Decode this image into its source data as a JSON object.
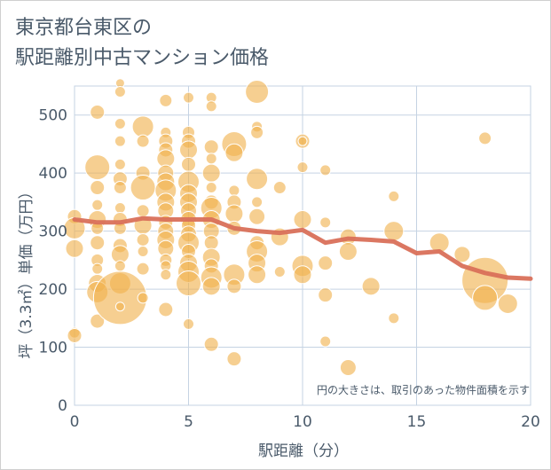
{
  "chart_data": {
    "type": "scatter",
    "title_lines": [
      "東京都台東区の",
      "駅距離別中古マンション価格"
    ],
    "xlabel": "駅距離（分）",
    "ylabel": "坪（3.3㎡）単価（万円）",
    "xlim": [
      0,
      20
    ],
    "ylim": [
      0,
      550
    ],
    "xticks": [
      0,
      5,
      10,
      15,
      20
    ],
    "yticks": [
      0,
      100,
      200,
      300,
      400,
      500
    ],
    "grid": true,
    "annotation": "円の大きさは、取引のあった物件面積を示す",
    "colors": {
      "bubble": "#f0b14d",
      "trend": "#d9705a",
      "grid": "#c5d3e3"
    },
    "bubbles": [
      {
        "x": 0,
        "y": 325,
        "s": 8
      },
      {
        "x": 0,
        "y": 305,
        "s": 12
      },
      {
        "x": 0,
        "y": 270,
        "s": 10
      },
      {
        "x": 0,
        "y": 125,
        "s": 6
      },
      {
        "x": 0,
        "y": 120,
        "s": 8
      },
      {
        "x": 1,
        "y": 505,
        "s": 8
      },
      {
        "x": 1,
        "y": 410,
        "s": 14
      },
      {
        "x": 1,
        "y": 375,
        "s": 8
      },
      {
        "x": 1,
        "y": 345,
        "s": 6
      },
      {
        "x": 1,
        "y": 320,
        "s": 10
      },
      {
        "x": 1,
        "y": 305,
        "s": 7
      },
      {
        "x": 1,
        "y": 280,
        "s": 8
      },
      {
        "x": 1,
        "y": 250,
        "s": 7
      },
      {
        "x": 1,
        "y": 235,
        "s": 6
      },
      {
        "x": 1,
        "y": 210,
        "s": 10
      },
      {
        "x": 1,
        "y": 195,
        "s": 12
      },
      {
        "x": 1,
        "y": 145,
        "s": 8
      },
      {
        "x": 2,
        "y": 555,
        "s": 5
      },
      {
        "x": 2,
        "y": 540,
        "s": 6
      },
      {
        "x": 2,
        "y": 485,
        "s": 6
      },
      {
        "x": 2,
        "y": 455,
        "s": 6
      },
      {
        "x": 2,
        "y": 415,
        "s": 6
      },
      {
        "x": 2,
        "y": 390,
        "s": 8
      },
      {
        "x": 2,
        "y": 375,
        "s": 7
      },
      {
        "x": 2,
        "y": 340,
        "s": 6
      },
      {
        "x": 2,
        "y": 320,
        "s": 8
      },
      {
        "x": 2,
        "y": 305,
        "s": 7
      },
      {
        "x": 2,
        "y": 275,
        "s": 8
      },
      {
        "x": 2,
        "y": 260,
        "s": 10
      },
      {
        "x": 2,
        "y": 240,
        "s": 6
      },
      {
        "x": 2,
        "y": 210,
        "s": 12
      },
      {
        "x": 2,
        "y": 185,
        "s": 30
      },
      {
        "x": 2,
        "y": 170,
        "s": 5
      },
      {
        "x": 3,
        "y": 480,
        "s": 12
      },
      {
        "x": 3,
        "y": 455,
        "s": 7
      },
      {
        "x": 3,
        "y": 400,
        "s": 8
      },
      {
        "x": 3,
        "y": 375,
        "s": 14
      },
      {
        "x": 3,
        "y": 335,
        "s": 7
      },
      {
        "x": 3,
        "y": 310,
        "s": 10
      },
      {
        "x": 3,
        "y": 285,
        "s": 7
      },
      {
        "x": 3,
        "y": 265,
        "s": 6
      },
      {
        "x": 3,
        "y": 235,
        "s": 7
      },
      {
        "x": 3,
        "y": 185,
        "s": 6
      },
      {
        "x": 4,
        "y": 525,
        "s": 7
      },
      {
        "x": 4,
        "y": 470,
        "s": 6
      },
      {
        "x": 4,
        "y": 455,
        "s": 8
      },
      {
        "x": 4,
        "y": 440,
        "s": 8
      },
      {
        "x": 4,
        "y": 425,
        "s": 10
      },
      {
        "x": 4,
        "y": 400,
        "s": 9
      },
      {
        "x": 4,
        "y": 385,
        "s": 10
      },
      {
        "x": 4,
        "y": 370,
        "s": 12
      },
      {
        "x": 4,
        "y": 350,
        "s": 10
      },
      {
        "x": 4,
        "y": 335,
        "s": 9
      },
      {
        "x": 4,
        "y": 315,
        "s": 8
      },
      {
        "x": 4,
        "y": 300,
        "s": 9
      },
      {
        "x": 4,
        "y": 285,
        "s": 10
      },
      {
        "x": 4,
        "y": 270,
        "s": 9
      },
      {
        "x": 4,
        "y": 250,
        "s": 7
      },
      {
        "x": 4,
        "y": 240,
        "s": 6
      },
      {
        "x": 4,
        "y": 225,
        "s": 6
      },
      {
        "x": 4,
        "y": 165,
        "s": 8
      },
      {
        "x": 5,
        "y": 530,
        "s": 6
      },
      {
        "x": 5,
        "y": 470,
        "s": 7
      },
      {
        "x": 5,
        "y": 455,
        "s": 8
      },
      {
        "x": 5,
        "y": 440,
        "s": 10
      },
      {
        "x": 5,
        "y": 415,
        "s": 8
      },
      {
        "x": 5,
        "y": 385,
        "s": 12
      },
      {
        "x": 5,
        "y": 365,
        "s": 10
      },
      {
        "x": 5,
        "y": 350,
        "s": 10
      },
      {
        "x": 5,
        "y": 335,
        "s": 9
      },
      {
        "x": 5,
        "y": 320,
        "s": 9
      },
      {
        "x": 5,
        "y": 310,
        "s": 8
      },
      {
        "x": 5,
        "y": 295,
        "s": 9
      },
      {
        "x": 5,
        "y": 280,
        "s": 12
      },
      {
        "x": 5,
        "y": 265,
        "s": 8
      },
      {
        "x": 5,
        "y": 245,
        "s": 10
      },
      {
        "x": 5,
        "y": 230,
        "s": 12
      },
      {
        "x": 5,
        "y": 210,
        "s": 14
      },
      {
        "x": 5,
        "y": 140,
        "s": 6
      },
      {
        "x": 6,
        "y": 530,
        "s": 6
      },
      {
        "x": 6,
        "y": 515,
        "s": 6
      },
      {
        "x": 6,
        "y": 445,
        "s": 8
      },
      {
        "x": 6,
        "y": 425,
        "s": 6
      },
      {
        "x": 6,
        "y": 400,
        "s": 10
      },
      {
        "x": 6,
        "y": 375,
        "s": 6
      },
      {
        "x": 6,
        "y": 350,
        "s": 8
      },
      {
        "x": 6,
        "y": 340,
        "s": 12
      },
      {
        "x": 6,
        "y": 320,
        "s": 10
      },
      {
        "x": 6,
        "y": 300,
        "s": 9
      },
      {
        "x": 6,
        "y": 280,
        "s": 8
      },
      {
        "x": 6,
        "y": 255,
        "s": 10
      },
      {
        "x": 6,
        "y": 240,
        "s": 8
      },
      {
        "x": 6,
        "y": 220,
        "s": 12
      },
      {
        "x": 6,
        "y": 205,
        "s": 10
      },
      {
        "x": 6,
        "y": 105,
        "s": 8
      },
      {
        "x": 7,
        "y": 450,
        "s": 14
      },
      {
        "x": 7,
        "y": 435,
        "s": 10
      },
      {
        "x": 7,
        "y": 370,
        "s": 6
      },
      {
        "x": 7,
        "y": 350,
        "s": 8
      },
      {
        "x": 7,
        "y": 330,
        "s": 10
      },
      {
        "x": 7,
        "y": 305,
        "s": 8
      },
      {
        "x": 7,
        "y": 225,
        "s": 12
      },
      {
        "x": 7,
        "y": 205,
        "s": 8
      },
      {
        "x": 7,
        "y": 80,
        "s": 8
      },
      {
        "x": 8,
        "y": 540,
        "s": 13
      },
      {
        "x": 8,
        "y": 480,
        "s": 6
      },
      {
        "x": 8,
        "y": 470,
        "s": 7
      },
      {
        "x": 8,
        "y": 390,
        "s": 12
      },
      {
        "x": 8,
        "y": 350,
        "s": 6
      },
      {
        "x": 8,
        "y": 325,
        "s": 9
      },
      {
        "x": 8,
        "y": 280,
        "s": 8
      },
      {
        "x": 8,
        "y": 265,
        "s": 12
      },
      {
        "x": 8,
        "y": 245,
        "s": 10
      },
      {
        "x": 8,
        "y": 225,
        "s": 10
      },
      {
        "x": 9,
        "y": 375,
        "s": 7
      },
      {
        "x": 9,
        "y": 290,
        "s": 10
      },
      {
        "x": 9,
        "y": 230,
        "s": 6
      },
      {
        "x": 10,
        "y": 455,
        "s": 8
      },
      {
        "x": 10,
        "y": 455,
        "s": 5
      },
      {
        "x": 10,
        "y": 410,
        "s": 6
      },
      {
        "x": 10,
        "y": 320,
        "s": 10
      },
      {
        "x": 10,
        "y": 240,
        "s": 12
      },
      {
        "x": 10,
        "y": 225,
        "s": 10
      },
      {
        "x": 11,
        "y": 405,
        "s": 6
      },
      {
        "x": 11,
        "y": 315,
        "s": 6
      },
      {
        "x": 11,
        "y": 245,
        "s": 8
      },
      {
        "x": 11,
        "y": 190,
        "s": 8
      },
      {
        "x": 11,
        "y": 110,
        "s": 6
      },
      {
        "x": 12,
        "y": 290,
        "s": 9
      },
      {
        "x": 12,
        "y": 265,
        "s": 10
      },
      {
        "x": 12,
        "y": 65,
        "s": 9
      },
      {
        "x": 13,
        "y": 205,
        "s": 10
      },
      {
        "x": 14,
        "y": 360,
        "s": 6
      },
      {
        "x": 14,
        "y": 300,
        "s": 11
      },
      {
        "x": 14,
        "y": 150,
        "s": 6
      },
      {
        "x": 16,
        "y": 280,
        "s": 11
      },
      {
        "x": 17,
        "y": 260,
        "s": 9
      },
      {
        "x": 18,
        "y": 460,
        "s": 7
      },
      {
        "x": 18,
        "y": 215,
        "s": 26
      },
      {
        "x": 18,
        "y": 185,
        "s": 14
      },
      {
        "x": 19,
        "y": 175,
        "s": 11
      }
    ],
    "trend": {
      "name": "",
      "x": [
        0,
        1,
        2,
        3,
        4,
        5,
        6,
        7,
        8,
        9,
        10,
        11,
        12,
        13,
        14,
        15,
        16,
        17,
        18,
        19,
        20
      ],
      "y": [
        320,
        315,
        315,
        322,
        320,
        320,
        320,
        305,
        300,
        297,
        302,
        280,
        287,
        285,
        282,
        262,
        265,
        240,
        228,
        220,
        218
      ]
    }
  }
}
